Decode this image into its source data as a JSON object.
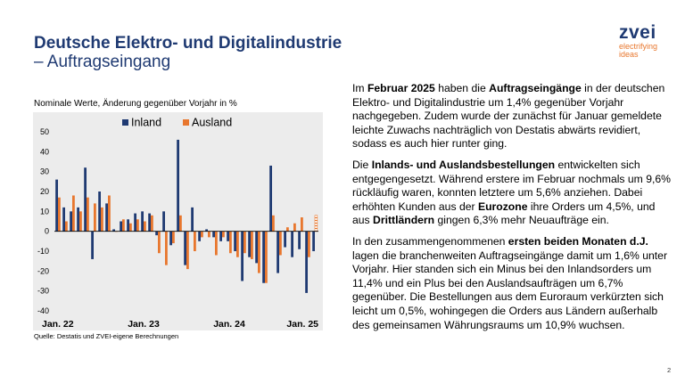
{
  "header": {
    "title_line1": "Deutsche Elektro- und Digitalindustrie",
    "title_line2": "– Auftragseingang"
  },
  "logo": {
    "brand": "zvei",
    "tagline1": "electrifying",
    "tagline2": "ideas"
  },
  "chart_caption": "Nominale Werte, Änderung gegenüber Vorjahr in %",
  "source": "Quelle: Destatis und ZVEI-eigene Berechnungen",
  "page_number": "2",
  "colors": {
    "inland": "#1f3a72",
    "ausland": "#e8772e",
    "title": "#1f3a72"
  },
  "body": {
    "p1": [
      {
        "t": "Im ",
        "b": false
      },
      {
        "t": "Februar 2025",
        "b": true
      },
      {
        "t": " haben die ",
        "b": false
      },
      {
        "t": "Auftragseingänge",
        "b": true
      },
      {
        "t": " in der deutschen Elektro- und Digitalindustrie um 1,4% gegenüber Vorjahr nachgegeben. Zudem wurde der zunächst für Januar gemeldete leichte Zuwachs nachträglich von Destatis abwärts revidiert, sodass es auch hier runter ging.",
        "b": false
      }
    ],
    "p2": [
      {
        "t": "Die ",
        "b": false
      },
      {
        "t": "Inlands- und Auslandsbestellungen",
        "b": true
      },
      {
        "t": " entwickelten sich entgegengesetzt. Während erstere im Februar nochmals um 9,6% rückläufig waren, konnten letztere um 5,6% anziehen. Dabei erhöhten Kunden aus der ",
        "b": false
      },
      {
        "t": "Eurozone",
        "b": true
      },
      {
        "t": " ihre Orders um 4,5%, und aus ",
        "b": false
      },
      {
        "t": "Drittländern",
        "b": true
      },
      {
        "t": " gingen 6,3% mehr Neuaufträge ein.",
        "b": false
      }
    ],
    "p3": [
      {
        "t": "In den zusammengenommenen ",
        "b": false
      },
      {
        "t": "ersten beiden Monaten d.J.",
        "b": true
      },
      {
        "t": " lagen die branchenweiten Auftragseingänge damit um 1,6% unter Vorjahr. Hier standen sich ein Minus bei den Inlandsorders um 11,4% und ein Plus bei den Auslandsaufträgen um 6,7% gegenüber. Die Bestellungen aus dem Euroraum verkürzten sich leicht um 0,5%, wohingegen die Orders aus Ländern außerhalb des gemeinsamen Währungsraums um 10,9% wuchsen.",
        "b": false
      }
    ]
  },
  "chart_data": {
    "type": "bar",
    "ylim": [
      -40,
      50
    ],
    "yticks": [
      "50",
      "40",
      "30",
      "20",
      "10",
      "0",
      "-10",
      "-20",
      "-30",
      "-40"
    ],
    "xtick_labels": [
      {
        "label": "Jan. 22",
        "index": 0
      },
      {
        "label": "Jan. 23",
        "index": 12
      },
      {
        "label": "Jan. 24",
        "index": 24
      },
      {
        "label": "Jan. 25",
        "index": 36
      }
    ],
    "legend": [
      "Inland",
      "Ausland"
    ],
    "legend_position": "top",
    "grid": false,
    "last_ausland_hatched": true,
    "series": [
      {
        "name": "Inland",
        "values": [
          26,
          12,
          10,
          12,
          32,
          -14,
          20,
          14,
          1,
          5,
          6,
          9,
          10,
          9,
          -2,
          10,
          -7,
          46,
          -17,
          12,
          -5,
          1,
          -3,
          -5,
          -5,
          -10,
          -25,
          -13,
          -16,
          -26,
          33,
          -21,
          -8,
          -13,
          -9,
          -31,
          -10
        ]
      },
      {
        "name": "Ausland",
        "values": [
          17,
          5,
          18,
          10,
          17,
          14,
          12,
          18,
          0,
          6,
          4,
          6,
          5,
          8,
          -11,
          -17,
          -6,
          8,
          -19,
          -10,
          -3,
          -3,
          -12,
          -3,
          -11,
          -13,
          -11,
          -14,
          -21,
          -26,
          8,
          -12,
          2,
          4,
          7,
          -13,
          8
        ]
      }
    ]
  }
}
